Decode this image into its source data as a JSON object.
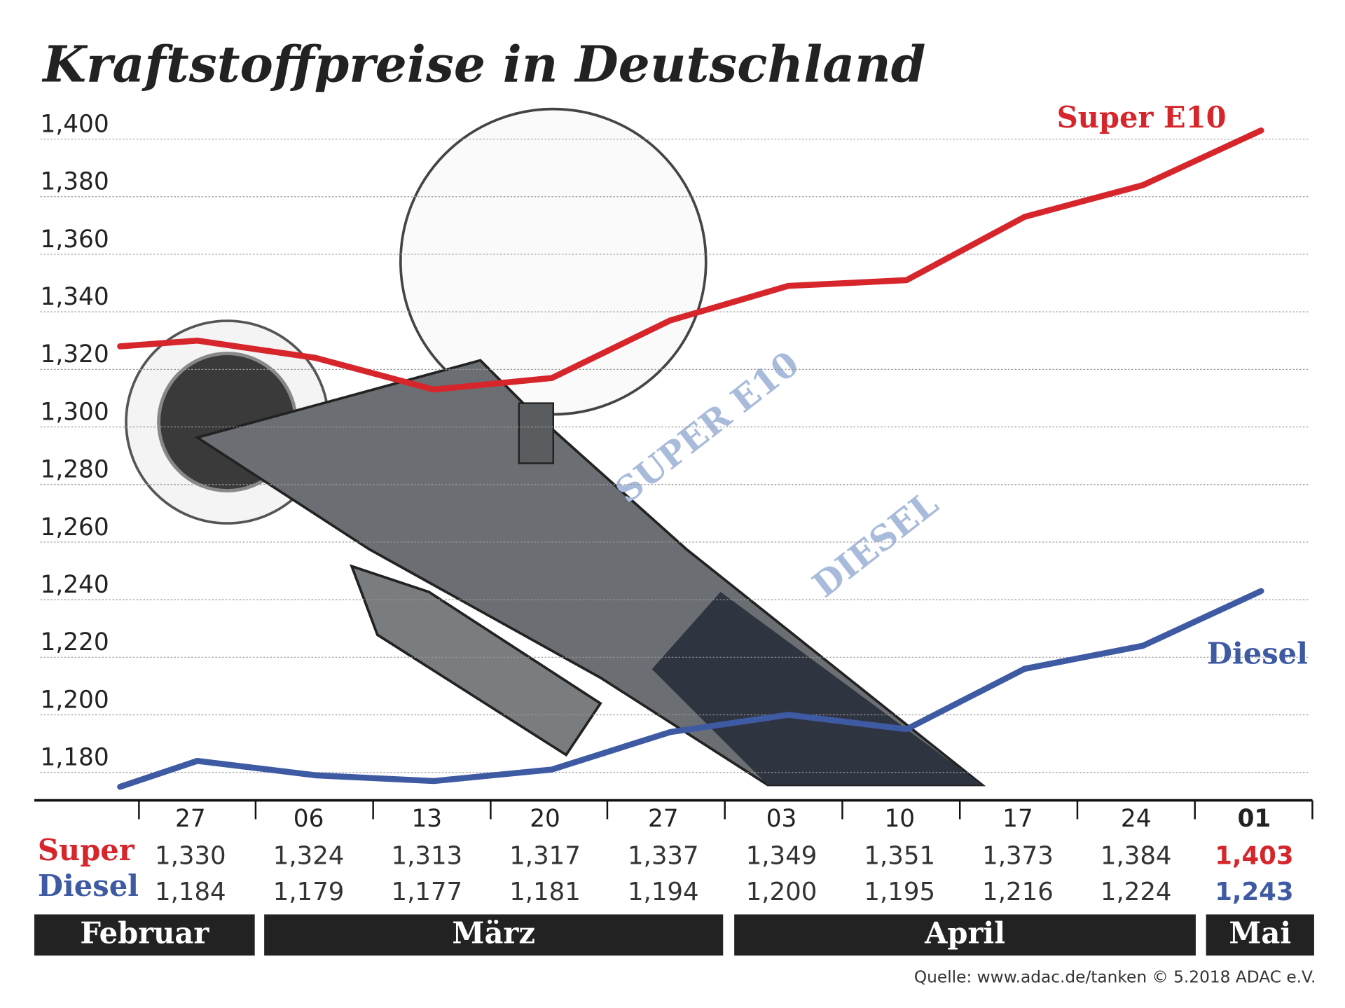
{
  "chart_data": {
    "type": "line",
    "title": "Kraftstoffpreise in Deutschland",
    "categories": [
      null,
      "27",
      "06",
      "13",
      "20",
      "27",
      "03",
      "10",
      "17",
      "24",
      "01"
    ],
    "series": [
      {
        "name": "Super E10",
        "row_label": "Super",
        "color": "#d7262b",
        "values": [
          1.328,
          1.33,
          1.324,
          1.313,
          1.317,
          1.337,
          1.349,
          1.351,
          1.373,
          1.384,
          1.403
        ],
        "value_labels": [
          null,
          "1,330",
          "1,324",
          "1,313",
          "1,317",
          "1,337",
          "1,349",
          "1,351",
          "1,373",
          "1,384",
          "1,403"
        ]
      },
      {
        "name": "Diesel",
        "row_label": "Diesel",
        "color": "#3e5aa3",
        "values": [
          1.175,
          1.184,
          1.179,
          1.177,
          1.181,
          1.194,
          1.2,
          1.195,
          1.216,
          1.224,
          1.243
        ],
        "value_labels": [
          null,
          "1,184",
          "1,179",
          "1,177",
          "1,181",
          "1,194",
          "1,200",
          "1,195",
          "1,216",
          "1,224",
          "1,243"
        ]
      }
    ],
    "ylim": [
      1.17,
      1.41
    ],
    "yticks": [
      {
        "value": 1.18,
        "label": "1,180"
      },
      {
        "value": 1.2,
        "label": "1,200"
      },
      {
        "value": 1.22,
        "label": "1,220"
      },
      {
        "value": 1.24,
        "label": "1,240"
      },
      {
        "value": 1.26,
        "label": "1,260"
      },
      {
        "value": 1.28,
        "label": "1,280"
      },
      {
        "value": 1.3,
        "label": "1,300"
      },
      {
        "value": 1.32,
        "label": "1,320"
      },
      {
        "value": 1.34,
        "label": "1,340"
      },
      {
        "value": 1.36,
        "label": "1,360"
      },
      {
        "value": 1.38,
        "label": "1,380"
      },
      {
        "value": 1.4,
        "label": "1,400"
      }
    ],
    "grid": true,
    "months": [
      "Februar",
      "März",
      "April",
      "Mai"
    ],
    "illustration_labels": [
      "SUPER E10",
      "DIESEL"
    ],
    "source": "Quelle: www.adac.de/tanken   © 5.2018  ADAC e.V."
  }
}
